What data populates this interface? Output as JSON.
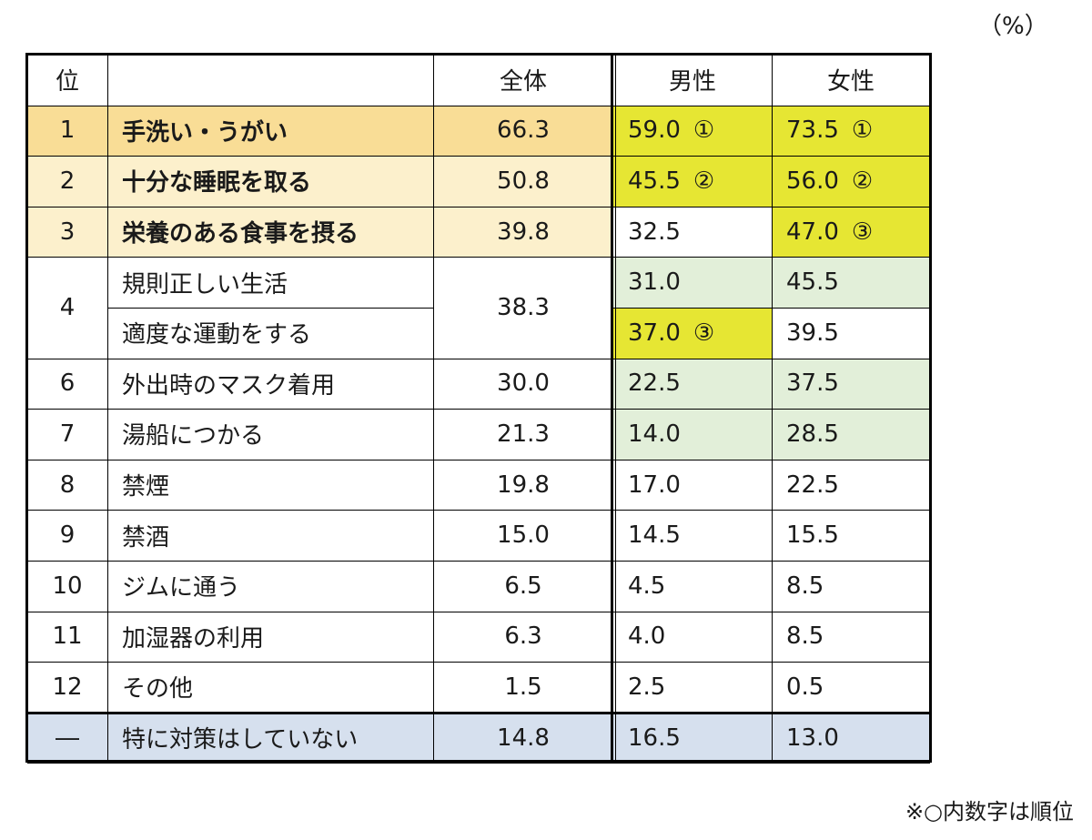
{
  "unit": "（%）",
  "note": "※○内数字は順位",
  "colors": {
    "rank1": "#f9dd96",
    "rank23": "#fcf0cc",
    "yellow": "#e6e633",
    "green": "#e2efd9",
    "blue": "#d6e0ee",
    "white": "#ffffff"
  },
  "chart_data": {
    "type": "table",
    "columns": [
      "位",
      "",
      "全体",
      "男性",
      "女性"
    ],
    "rows": [
      {
        "rank": "1",
        "item": "手洗い・うがい",
        "total": "66.3",
        "male": "59.0",
        "male_rank": "①",
        "female": "73.5",
        "female_rank": "①"
      },
      {
        "rank": "2",
        "item": "十分な睡眠を取る",
        "total": "50.8",
        "male": "45.5",
        "male_rank": "②",
        "female": "56.0",
        "female_rank": "②"
      },
      {
        "rank": "3",
        "item": "栄養のある食事を摂る",
        "total": "39.8",
        "male": "32.5",
        "male_rank": "",
        "female": "47.0",
        "female_rank": "③"
      },
      {
        "rank": "4",
        "item": "規則正しい生活",
        "total": "38.3",
        "male": "31.0",
        "male_rank": "",
        "female": "45.5",
        "female_rank": ""
      },
      {
        "rank": "",
        "item": "適度な運動をする",
        "total": "",
        "male": "37.0",
        "male_rank": "③",
        "female": "39.5",
        "female_rank": ""
      },
      {
        "rank": "6",
        "item": "外出時のマスク着用",
        "total": "30.0",
        "male": "22.5",
        "male_rank": "",
        "female": "37.5",
        "female_rank": ""
      },
      {
        "rank": "7",
        "item": "湯船につかる",
        "total": "21.3",
        "male": "14.0",
        "male_rank": "",
        "female": "28.5",
        "female_rank": ""
      },
      {
        "rank": "8",
        "item": "禁煙",
        "total": "19.8",
        "male": "17.0",
        "male_rank": "",
        "female": "22.5",
        "female_rank": ""
      },
      {
        "rank": "9",
        "item": "禁酒",
        "total": "15.0",
        "male": "14.5",
        "male_rank": "",
        "female": "15.5",
        "female_rank": ""
      },
      {
        "rank": "10",
        "item": "ジムに通う",
        "total": "6.5",
        "male": "4.5",
        "male_rank": "",
        "female": "8.5",
        "female_rank": ""
      },
      {
        "rank": "11",
        "item": "加湿器の利用",
        "total": "6.3",
        "male": "4.0",
        "male_rank": "",
        "female": "8.5",
        "female_rank": ""
      },
      {
        "rank": "12",
        "item": "その他",
        "total": "1.5",
        "male": "2.5",
        "male_rank": "",
        "female": "0.5",
        "female_rank": ""
      },
      {
        "rank": "―",
        "item": "特に対策はしていない",
        "total": "14.8",
        "male": "16.5",
        "male_rank": "",
        "female": "13.0",
        "female_rank": ""
      }
    ]
  }
}
